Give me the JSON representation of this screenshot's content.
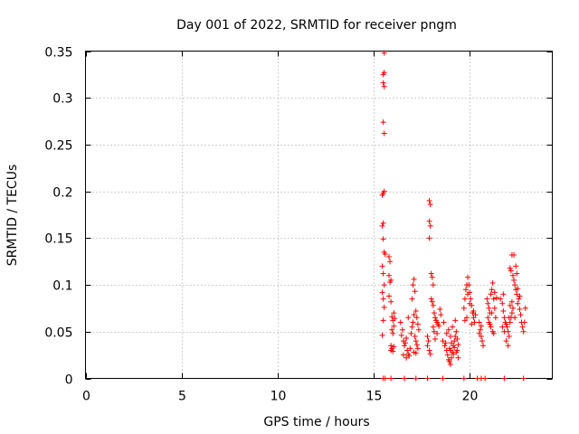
{
  "chart_data": {
    "type": "scatter",
    "title": "Day 001 of 2022, SRMTID for receiver pngm",
    "xlabel": "GPS time / hours",
    "ylabel": "SRMTID / TECUs",
    "xlim": [
      0,
      24.3
    ],
    "ylim": [
      0,
      0.35
    ],
    "x_ticks": [
      0,
      5,
      10,
      15,
      20
    ],
    "x_tick_labels": [
      "0",
      "5",
      "10",
      "15",
      "20"
    ],
    "y_ticks": [
      0,
      0.05,
      0.1,
      0.15,
      0.2,
      0.25,
      0.3,
      0.35
    ],
    "y_tick_labels": [
      "0",
      "0.05",
      "0.1",
      "0.15",
      "0.2",
      "0.25",
      "0.3",
      "0.35"
    ],
    "grid": true,
    "marker": "+",
    "color": "#ff0000",
    "series": [
      {
        "name": "SRMTID",
        "points": [
          [
            15.5,
            0.0
          ],
          [
            15.6,
            0.0
          ],
          [
            15.9,
            0.0
          ],
          [
            16.6,
            0.0
          ],
          [
            17.2,
            0.0
          ],
          [
            17.8,
            0.0
          ],
          [
            18.6,
            0.0
          ],
          [
            19.7,
            0.0
          ],
          [
            20.4,
            0.0
          ],
          [
            20.6,
            0.0
          ],
          [
            20.8,
            0.0
          ],
          [
            21.8,
            0.0
          ],
          [
            22.8,
            0.0
          ],
          [
            15.55,
            0.348
          ],
          [
            15.5,
            0.325
          ],
          [
            15.55,
            0.327
          ],
          [
            15.5,
            0.316
          ],
          [
            15.55,
            0.312
          ],
          [
            15.5,
            0.274
          ],
          [
            15.55,
            0.262
          ],
          [
            15.5,
            0.198
          ],
          [
            15.55,
            0.2
          ],
          [
            15.45,
            0.196
          ],
          [
            15.5,
            0.166
          ],
          [
            15.45,
            0.163
          ],
          [
            15.5,
            0.149
          ],
          [
            15.55,
            0.135
          ],
          [
            15.6,
            0.133
          ],
          [
            15.45,
            0.12
          ],
          [
            15.5,
            0.112
          ],
          [
            15.55,
            0.1
          ],
          [
            15.45,
            0.092
          ],
          [
            15.5,
            0.085
          ],
          [
            15.55,
            0.076
          ],
          [
            15.5,
            0.062
          ],
          [
            15.45,
            0.046
          ],
          [
            15.8,
            0.13
          ],
          [
            15.85,
            0.125
          ],
          [
            15.8,
            0.11
          ],
          [
            15.9,
            0.105
          ],
          [
            15.85,
            0.103
          ],
          [
            15.8,
            0.088
          ],
          [
            15.9,
            0.082
          ],
          [
            15.95,
            0.066
          ],
          [
            16.0,
            0.062
          ],
          [
            16.05,
            0.056
          ],
          [
            15.95,
            0.052
          ],
          [
            16.0,
            0.048
          ],
          [
            15.9,
            0.035
          ],
          [
            15.95,
            0.032
          ],
          [
            16.0,
            0.029
          ],
          [
            16.05,
            0.034
          ],
          [
            15.9,
            0.03
          ],
          [
            16.1,
            0.064
          ],
          [
            16.05,
            0.07
          ],
          [
            16.4,
            0.06
          ],
          [
            16.5,
            0.052
          ],
          [
            16.45,
            0.046
          ],
          [
            16.55,
            0.04
          ],
          [
            16.6,
            0.035
          ],
          [
            16.7,
            0.043
          ],
          [
            16.65,
            0.038
          ],
          [
            16.75,
            0.03
          ],
          [
            16.8,
            0.026
          ],
          [
            16.85,
            0.024
          ],
          [
            16.9,
            0.032
          ],
          [
            16.95,
            0.048
          ],
          [
            17.0,
            0.055
          ],
          [
            17.05,
            0.06
          ],
          [
            17.1,
            0.068
          ],
          [
            17.0,
            0.085
          ],
          [
            17.05,
            0.1
          ],
          [
            17.1,
            0.106
          ],
          [
            17.15,
            0.093
          ],
          [
            17.2,
            0.072
          ],
          [
            17.25,
            0.065
          ],
          [
            17.3,
            0.058
          ],
          [
            17.35,
            0.052
          ],
          [
            17.15,
            0.045
          ],
          [
            17.2,
            0.04
          ],
          [
            17.25,
            0.036
          ],
          [
            17.3,
            0.032
          ],
          [
            16.55,
            0.025
          ],
          [
            16.7,
            0.022
          ],
          [
            16.8,
            0.065
          ],
          [
            17.1,
            0.028
          ],
          [
            17.2,
            0.027
          ],
          [
            17.9,
            0.19
          ],
          [
            17.95,
            0.186
          ],
          [
            17.9,
            0.168
          ],
          [
            17.95,
            0.163
          ],
          [
            17.9,
            0.15
          ],
          [
            18.0,
            0.112
          ],
          [
            18.05,
            0.108
          ],
          [
            18.1,
            0.1
          ],
          [
            18.0,
            0.085
          ],
          [
            18.05,
            0.082
          ],
          [
            18.1,
            0.078
          ],
          [
            18.15,
            0.07
          ],
          [
            18.2,
            0.065
          ],
          [
            18.25,
            0.062
          ],
          [
            18.3,
            0.06
          ],
          [
            18.35,
            0.058
          ],
          [
            18.1,
            0.055
          ],
          [
            18.15,
            0.05
          ],
          [
            17.8,
            0.045
          ],
          [
            17.85,
            0.04
          ],
          [
            17.8,
            0.035
          ],
          [
            17.9,
            0.03
          ],
          [
            17.95,
            0.026
          ],
          [
            18.2,
            0.042
          ],
          [
            18.3,
            0.048
          ],
          [
            18.4,
            0.056
          ],
          [
            18.45,
            0.074
          ],
          [
            18.5,
            0.068
          ],
          [
            18.6,
            0.04
          ],
          [
            18.7,
            0.035
          ],
          [
            18.75,
            0.038
          ],
          [
            18.8,
            0.03
          ],
          [
            18.85,
            0.025
          ],
          [
            18.9,
            0.02
          ],
          [
            18.95,
            0.018
          ],
          [
            19.0,
            0.015
          ],
          [
            19.05,
            0.022
          ],
          [
            19.1,
            0.028
          ],
          [
            19.15,
            0.035
          ],
          [
            19.2,
            0.04
          ],
          [
            19.25,
            0.045
          ],
          [
            19.3,
            0.05
          ],
          [
            19.35,
            0.042
          ],
          [
            19.4,
            0.036
          ],
          [
            18.8,
            0.048
          ],
          [
            18.9,
            0.052
          ],
          [
            19.0,
            0.045
          ],
          [
            19.1,
            0.055
          ],
          [
            19.2,
            0.033
          ],
          [
            19.3,
            0.028
          ],
          [
            19.35,
            0.03
          ],
          [
            18.65,
            0.06
          ],
          [
            19.25,
            0.062
          ],
          [
            18.95,
            0.032
          ],
          [
            19.05,
            0.038
          ],
          [
            19.15,
            0.026
          ],
          [
            19.4,
            0.022
          ],
          [
            19.0,
            0.03
          ],
          [
            19.7,
            0.075
          ],
          [
            19.75,
            0.085
          ],
          [
            19.8,
            0.095
          ],
          [
            19.85,
            0.1
          ],
          [
            19.9,
            0.108
          ],
          [
            19.95,
            0.1
          ],
          [
            20.0,
            0.092
          ],
          [
            20.05,
            0.085
          ],
          [
            20.1,
            0.078
          ],
          [
            20.15,
            0.07
          ],
          [
            20.2,
            0.065
          ],
          [
            20.25,
            0.06
          ],
          [
            20.3,
            0.068
          ],
          [
            19.75,
            0.062
          ],
          [
            19.85,
            0.065
          ],
          [
            20.1,
            0.058
          ],
          [
            20.2,
            0.072
          ],
          [
            20.0,
            0.08
          ],
          [
            19.9,
            0.09
          ],
          [
            20.5,
            0.06
          ],
          [
            20.55,
            0.052
          ],
          [
            20.6,
            0.045
          ],
          [
            20.65,
            0.04
          ],
          [
            20.7,
            0.035
          ],
          [
            20.5,
            0.048
          ],
          [
            20.6,
            0.056
          ],
          [
            20.9,
            0.085
          ],
          [
            20.95,
            0.08
          ],
          [
            21.0,
            0.075
          ],
          [
            21.05,
            0.07
          ],
          [
            21.1,
            0.09
          ],
          [
            21.15,
            0.095
          ],
          [
            21.2,
            0.102
          ],
          [
            21.25,
            0.085
          ],
          [
            21.3,
            0.075
          ],
          [
            21.35,
            0.065
          ],
          [
            21.0,
            0.06
          ],
          [
            21.1,
            0.055
          ],
          [
            21.2,
            0.05
          ],
          [
            21.25,
            0.048
          ],
          [
            21.05,
            0.058
          ],
          [
            21.15,
            0.07
          ],
          [
            20.95,
            0.065
          ],
          [
            21.3,
            0.092
          ],
          [
            21.4,
            0.086
          ],
          [
            21.6,
            0.085
          ],
          [
            21.7,
            0.08
          ],
          [
            21.75,
            0.072
          ],
          [
            21.8,
            0.065
          ],
          [
            21.85,
            0.06
          ],
          [
            21.9,
            0.058
          ],
          [
            21.95,
            0.055
          ],
          [
            22.0,
            0.05
          ],
          [
            22.05,
            0.045
          ],
          [
            22.1,
            0.06
          ],
          [
            22.15,
            0.065
          ],
          [
            22.2,
            0.07
          ],
          [
            22.25,
            0.075
          ],
          [
            21.7,
            0.055
          ],
          [
            21.8,
            0.05
          ],
          [
            21.9,
            0.04
          ],
          [
            22.0,
            0.035
          ],
          [
            22.05,
            0.065
          ],
          [
            22.1,
            0.078
          ],
          [
            21.75,
            0.09
          ],
          [
            22.1,
            0.118
          ],
          [
            22.15,
            0.115
          ],
          [
            22.2,
            0.132
          ],
          [
            22.25,
            0.11
          ],
          [
            22.3,
            0.105
          ],
          [
            22.35,
            0.1
          ],
          [
            22.4,
            0.095
          ],
          [
            22.45,
            0.09
          ],
          [
            22.5,
            0.096
          ],
          [
            22.55,
            0.085
          ],
          [
            22.3,
            0.132
          ],
          [
            22.4,
            0.12
          ],
          [
            22.45,
            0.112
          ],
          [
            22.5,
            0.08
          ],
          [
            22.6,
            0.074
          ],
          [
            22.65,
            0.068
          ],
          [
            22.7,
            0.06
          ],
          [
            22.75,
            0.055
          ],
          [
            22.8,
            0.05
          ],
          [
            22.85,
            0.06
          ],
          [
            22.9,
            0.075
          ],
          [
            22.6,
            0.088
          ],
          [
            22.35,
            0.065
          ],
          [
            22.2,
            0.082
          ]
        ]
      }
    ]
  }
}
